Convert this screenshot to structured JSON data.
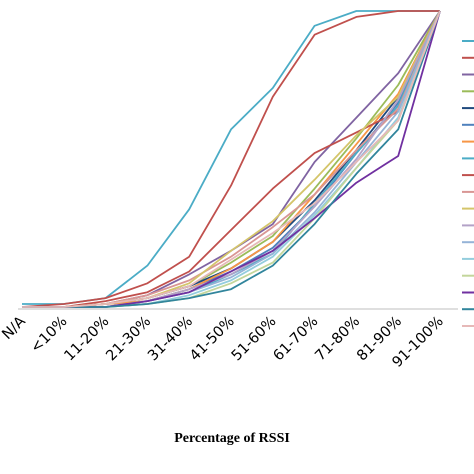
{
  "chart_data": {
    "type": "line",
    "title": "",
    "xlabel": "Percentage of RSSI",
    "ylabel": "",
    "categories": [
      "N/A",
      "<10%",
      "11-20%",
      "21-30%",
      "31-40%",
      "41-50%",
      "51-60%",
      "61-70%",
      "71-80%",
      "81-90%",
      "91-100%"
    ],
    "ylim": [
      0,
      1
    ],
    "grid": false,
    "legend_position": "right",
    "series": [
      {
        "color": "#4bacc6",
        "values": [
          0.01,
          0.01,
          0.03,
          0.14,
          0.33,
          0.6,
          0.74,
          0.95,
          1.0,
          1.0,
          1.0
        ]
      },
      {
        "color": "#c0504d",
        "values": [
          0.0,
          0.01,
          0.03,
          0.08,
          0.17,
          0.41,
          0.71,
          0.92,
          0.98,
          1.0,
          1.0
        ]
      },
      {
        "color": "#8064a2",
        "values": [
          0.0,
          0.0,
          0.01,
          0.04,
          0.11,
          0.19,
          0.28,
          0.49,
          0.64,
          0.79,
          1.0
        ]
      },
      {
        "color": "#9bbb59",
        "values": [
          0.0,
          0.0,
          0.01,
          0.03,
          0.07,
          0.15,
          0.24,
          0.4,
          0.57,
          0.75,
          1.0
        ]
      },
      {
        "color": "#1f497d",
        "values": [
          0.0,
          0.0,
          0.01,
          0.03,
          0.07,
          0.13,
          0.22,
          0.36,
          0.53,
          0.71,
          1.0
        ]
      },
      {
        "color": "#4f81bd",
        "values": [
          0.0,
          0.0,
          0.01,
          0.02,
          0.06,
          0.12,
          0.2,
          0.34,
          0.52,
          0.69,
          1.0
        ]
      },
      {
        "color": "#f79646",
        "values": [
          0.0,
          0.0,
          0.01,
          0.02,
          0.06,
          0.13,
          0.22,
          0.38,
          0.55,
          0.72,
          1.0
        ]
      },
      {
        "color": "#4bacc6",
        "values": [
          0.0,
          0.0,
          0.0,
          0.02,
          0.05,
          0.11,
          0.18,
          0.35,
          0.52,
          0.68,
          1.0
        ]
      },
      {
        "color": "#c0504d",
        "values": [
          0.0,
          0.0,
          0.02,
          0.05,
          0.12,
          0.26,
          0.4,
          0.52,
          0.59,
          0.66,
          1.0
        ]
      },
      {
        "color": "#d99694",
        "values": [
          0.0,
          0.0,
          0.01,
          0.04,
          0.09,
          0.17,
          0.27,
          0.38,
          0.53,
          0.67,
          1.0
        ]
      },
      {
        "color": "#d4c56a",
        "values": [
          0.0,
          0.0,
          0.01,
          0.03,
          0.08,
          0.19,
          0.29,
          0.43,
          0.58,
          0.71,
          1.0
        ]
      },
      {
        "color": "#b3a2c7",
        "values": [
          0.0,
          0.0,
          0.0,
          0.02,
          0.06,
          0.11,
          0.19,
          0.34,
          0.5,
          0.7,
          1.0
        ]
      },
      {
        "color": "#95b3d7",
        "values": [
          0.0,
          0.0,
          0.0,
          0.02,
          0.05,
          0.1,
          0.18,
          0.32,
          0.49,
          0.66,
          1.0
        ]
      },
      {
        "color": "#93cddd",
        "values": [
          0.0,
          0.0,
          0.0,
          0.01,
          0.04,
          0.09,
          0.17,
          0.31,
          0.47,
          0.64,
          1.0
        ]
      },
      {
        "color": "#c3d69b",
        "values": [
          0.0,
          0.0,
          0.0,
          0.01,
          0.03,
          0.08,
          0.15,
          0.3,
          0.47,
          0.63,
          1.0
        ]
      },
      {
        "color": "#7030a0",
        "values": [
          0.0,
          0.0,
          0.0,
          0.02,
          0.05,
          0.12,
          0.19,
          0.3,
          0.42,
          0.51,
          1.0
        ]
      },
      {
        "color": "#31859c",
        "values": [
          0.0,
          0.0,
          0.0,
          0.01,
          0.03,
          0.06,
          0.14,
          0.28,
          0.45,
          0.6,
          1.0
        ]
      },
      {
        "color": "#e6b9b8",
        "values": [
          0.0,
          0.0,
          0.01,
          0.03,
          0.07,
          0.16,
          0.25,
          0.35,
          0.49,
          0.63,
          1.0
        ]
      }
    ]
  }
}
